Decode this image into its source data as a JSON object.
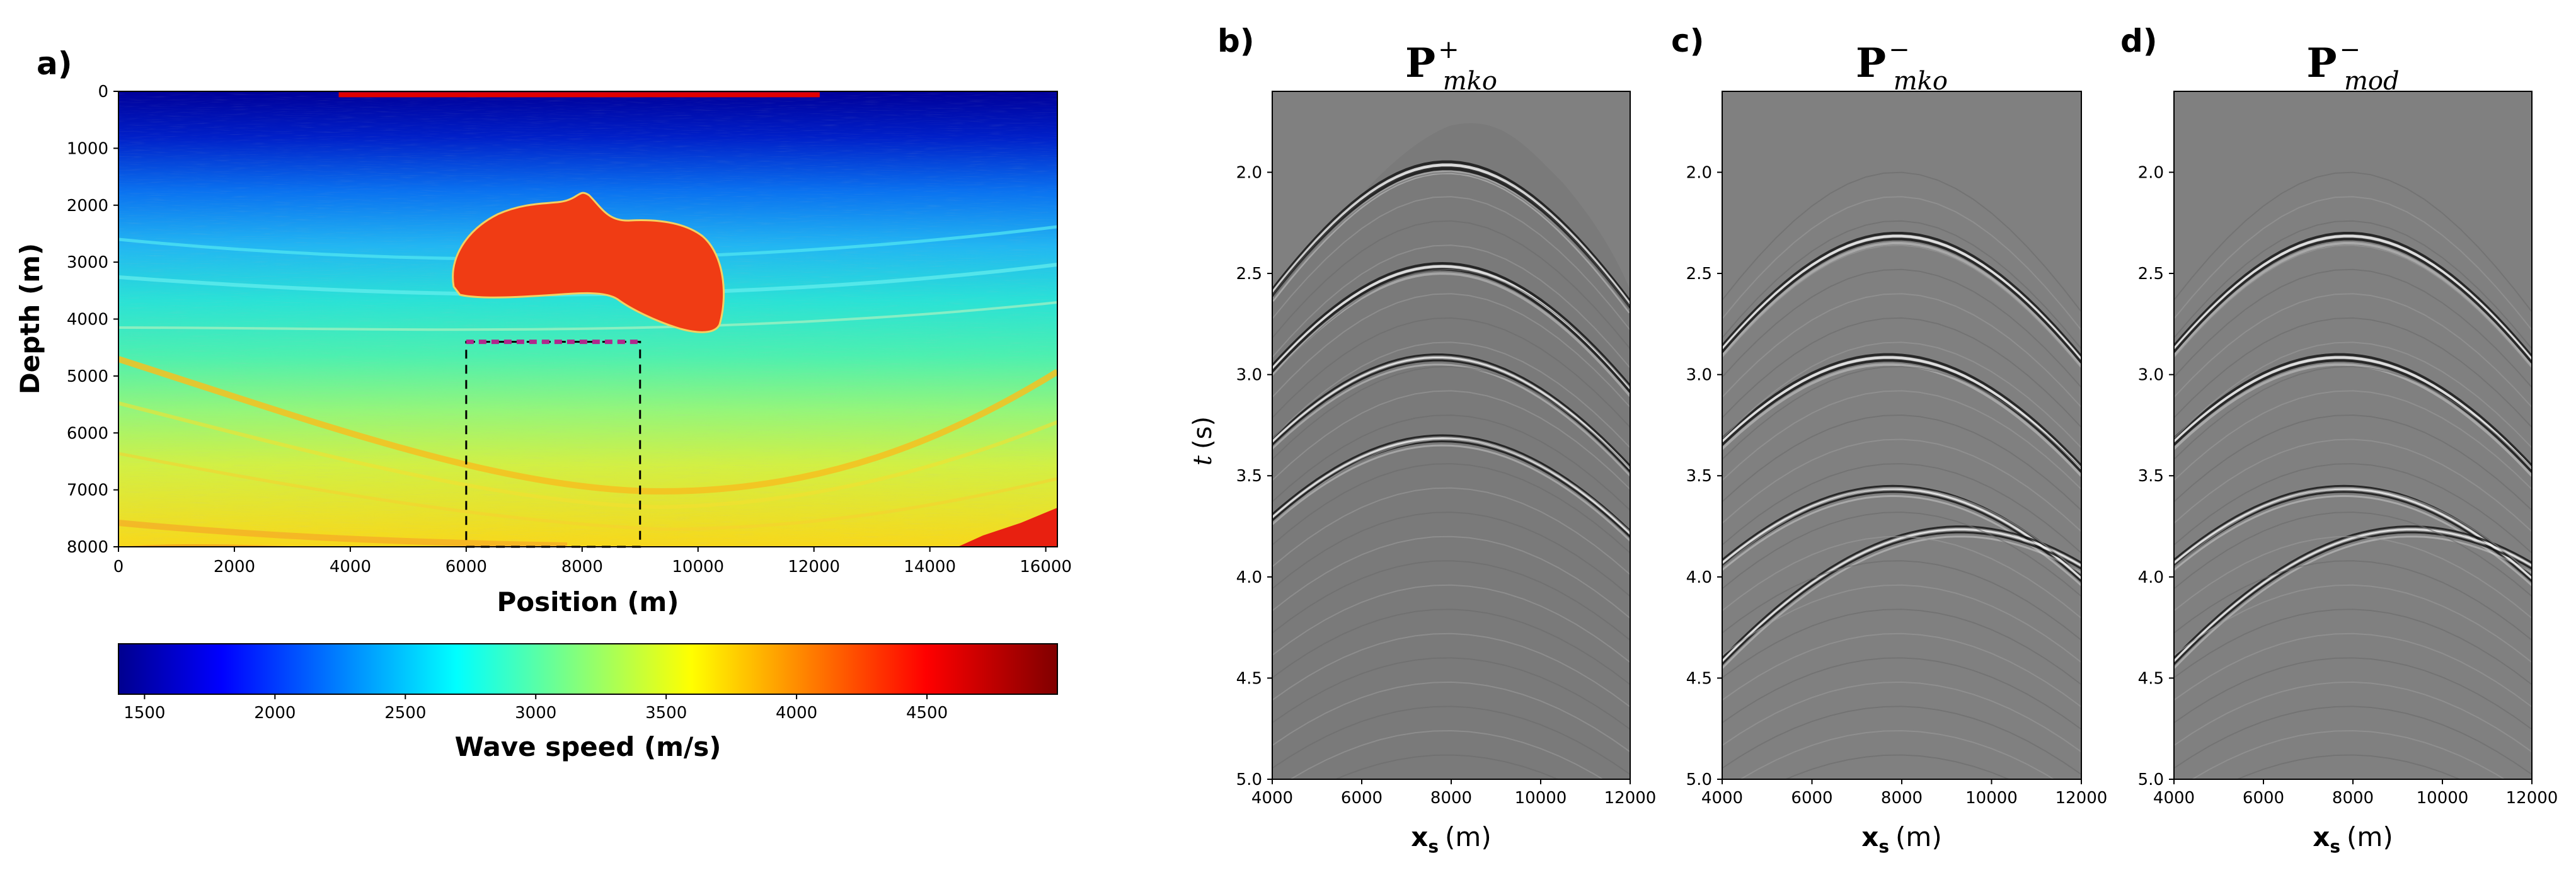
{
  "colors": {
    "salt": "#f03c14",
    "source_line": "#e00000",
    "target_line": "#b0288c",
    "seismic_bg": "#808080"
  },
  "chart_data": [
    {
      "type": "heatmap",
      "panel": "a)",
      "title": "",
      "xlabel": "Position (m)",
      "ylabel": "Depth (m)",
      "xlim": [
        0,
        16200
      ],
      "ylim": [
        8000,
        0
      ],
      "xticks": [
        "0",
        "2000",
        "4000",
        "6000",
        "8000",
        "10000",
        "12000",
        "14000",
        "16000"
      ],
      "yticks": [
        "0",
        "1000",
        "2000",
        "3000",
        "4000",
        "5000",
        "6000",
        "7000",
        "8000"
      ],
      "colorbar": {
        "label": "Wave speed (m/s)",
        "range": [
          1400,
          5000
        ],
        "ticks": [
          "1500",
          "2000",
          "2500",
          "3000",
          "3500",
          "4000",
          "4500"
        ]
      },
      "annotations": {
        "source_line": {
          "x_range": [
            3800,
            12100
          ],
          "depth": 60
        },
        "target_box": {
          "x_range": [
            6000,
            9000
          ],
          "depth_range": [
            4400,
            8000
          ]
        },
        "salt_body": {
          "velocity": 4500
        }
      }
    },
    {
      "type": "heatmap",
      "panel": "b)",
      "title_main": "P",
      "title_sup": "+",
      "title_sub": "mko",
      "xlabel_bold": "x",
      "xlabel_sub": "s",
      "xlabel_unit": "(m)",
      "ylabel_var": "t",
      "ylabel_unit": "(s)",
      "xlim": [
        4000,
        12000
      ],
      "ylim": [
        5.0,
        1.6
      ],
      "xticks": [
        "4000",
        "6000",
        "8000",
        "10000",
        "12000"
      ],
      "yticks": [
        "2.0",
        "2.5",
        "3.0",
        "3.5",
        "4.0",
        "4.5",
        "5.0"
      ],
      "events_apex": [
        {
          "x": 7900,
          "t": 1.95
        },
        {
          "x": 7800,
          "t": 2.45
        },
        {
          "x": 7700,
          "t": 2.9
        },
        {
          "x": 7800,
          "t": 3.3
        }
      ]
    },
    {
      "type": "heatmap",
      "panel": "c)",
      "title_main": "P",
      "title_sup": "−",
      "title_sub": "mko",
      "xlabel_bold": "x",
      "xlabel_sub": "s",
      "xlabel_unit": "(m)",
      "xlim": [
        4000,
        12000
      ],
      "ylim": [
        5.0,
        1.6
      ],
      "xticks": [
        "4000",
        "6000",
        "8000",
        "10000",
        "12000"
      ],
      "yticks": [
        "2.0",
        "2.5",
        "3.0",
        "3.5",
        "4.0",
        "4.5",
        "5.0"
      ],
      "events_apex": [
        {
          "x": 7900,
          "t": 2.3
        },
        {
          "x": 7700,
          "t": 2.9
        },
        {
          "x": 7800,
          "t": 3.55
        },
        {
          "x": 9300,
          "t": 3.75
        }
      ]
    },
    {
      "type": "heatmap",
      "panel": "d)",
      "title_main": "P",
      "title_sup": "−",
      "title_sub": "mod",
      "xlabel_bold": "x",
      "xlabel_sub": "s",
      "xlabel_unit": "(m)",
      "xlim": [
        4000,
        12000
      ],
      "ylim": [
        5.0,
        1.6
      ],
      "xticks": [
        "4000",
        "6000",
        "8000",
        "10000",
        "12000"
      ],
      "yticks": [
        "2.0",
        "2.5",
        "3.0",
        "3.5",
        "4.0",
        "4.5",
        "5.0"
      ],
      "events_apex": [
        {
          "x": 7900,
          "t": 2.3
        },
        {
          "x": 7700,
          "t": 2.9
        },
        {
          "x": 7800,
          "t": 3.55
        },
        {
          "x": 9300,
          "t": 3.75
        }
      ]
    }
  ]
}
